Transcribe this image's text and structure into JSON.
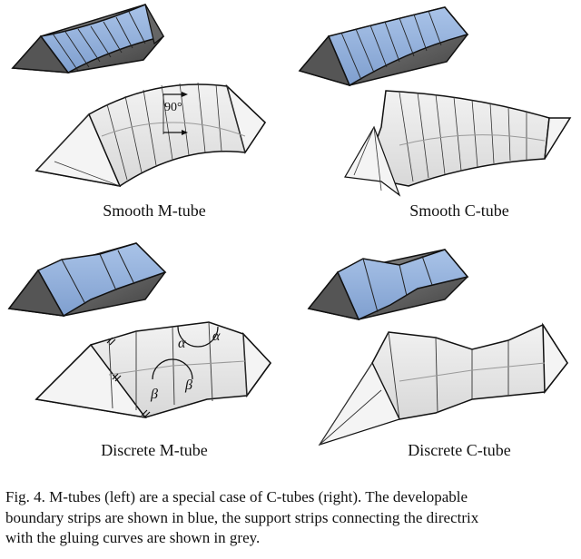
{
  "panels": {
    "smooth_m": "Smooth M-tube",
    "smooth_c": "Smooth C-tube",
    "discrete_m": "Discrete M-tube",
    "discrete_c": "Discrete C-tube"
  },
  "annotations": {
    "angle": "90°",
    "alpha": "α",
    "beta": "β"
  },
  "caption": {
    "line1": "Fig. 4.  M-tubes (left) are a special case of C-tubes (right). The developable",
    "line2": "boundary strips are shown in blue, the support strips connecting the directrix",
    "line3": "with the gluing curves are shown in grey."
  },
  "colors": {
    "blue_strip": "#9bb8e0",
    "grey_strip": "#e6e6e6",
    "dark_face": "#707070",
    "stroke": "#111111"
  }
}
